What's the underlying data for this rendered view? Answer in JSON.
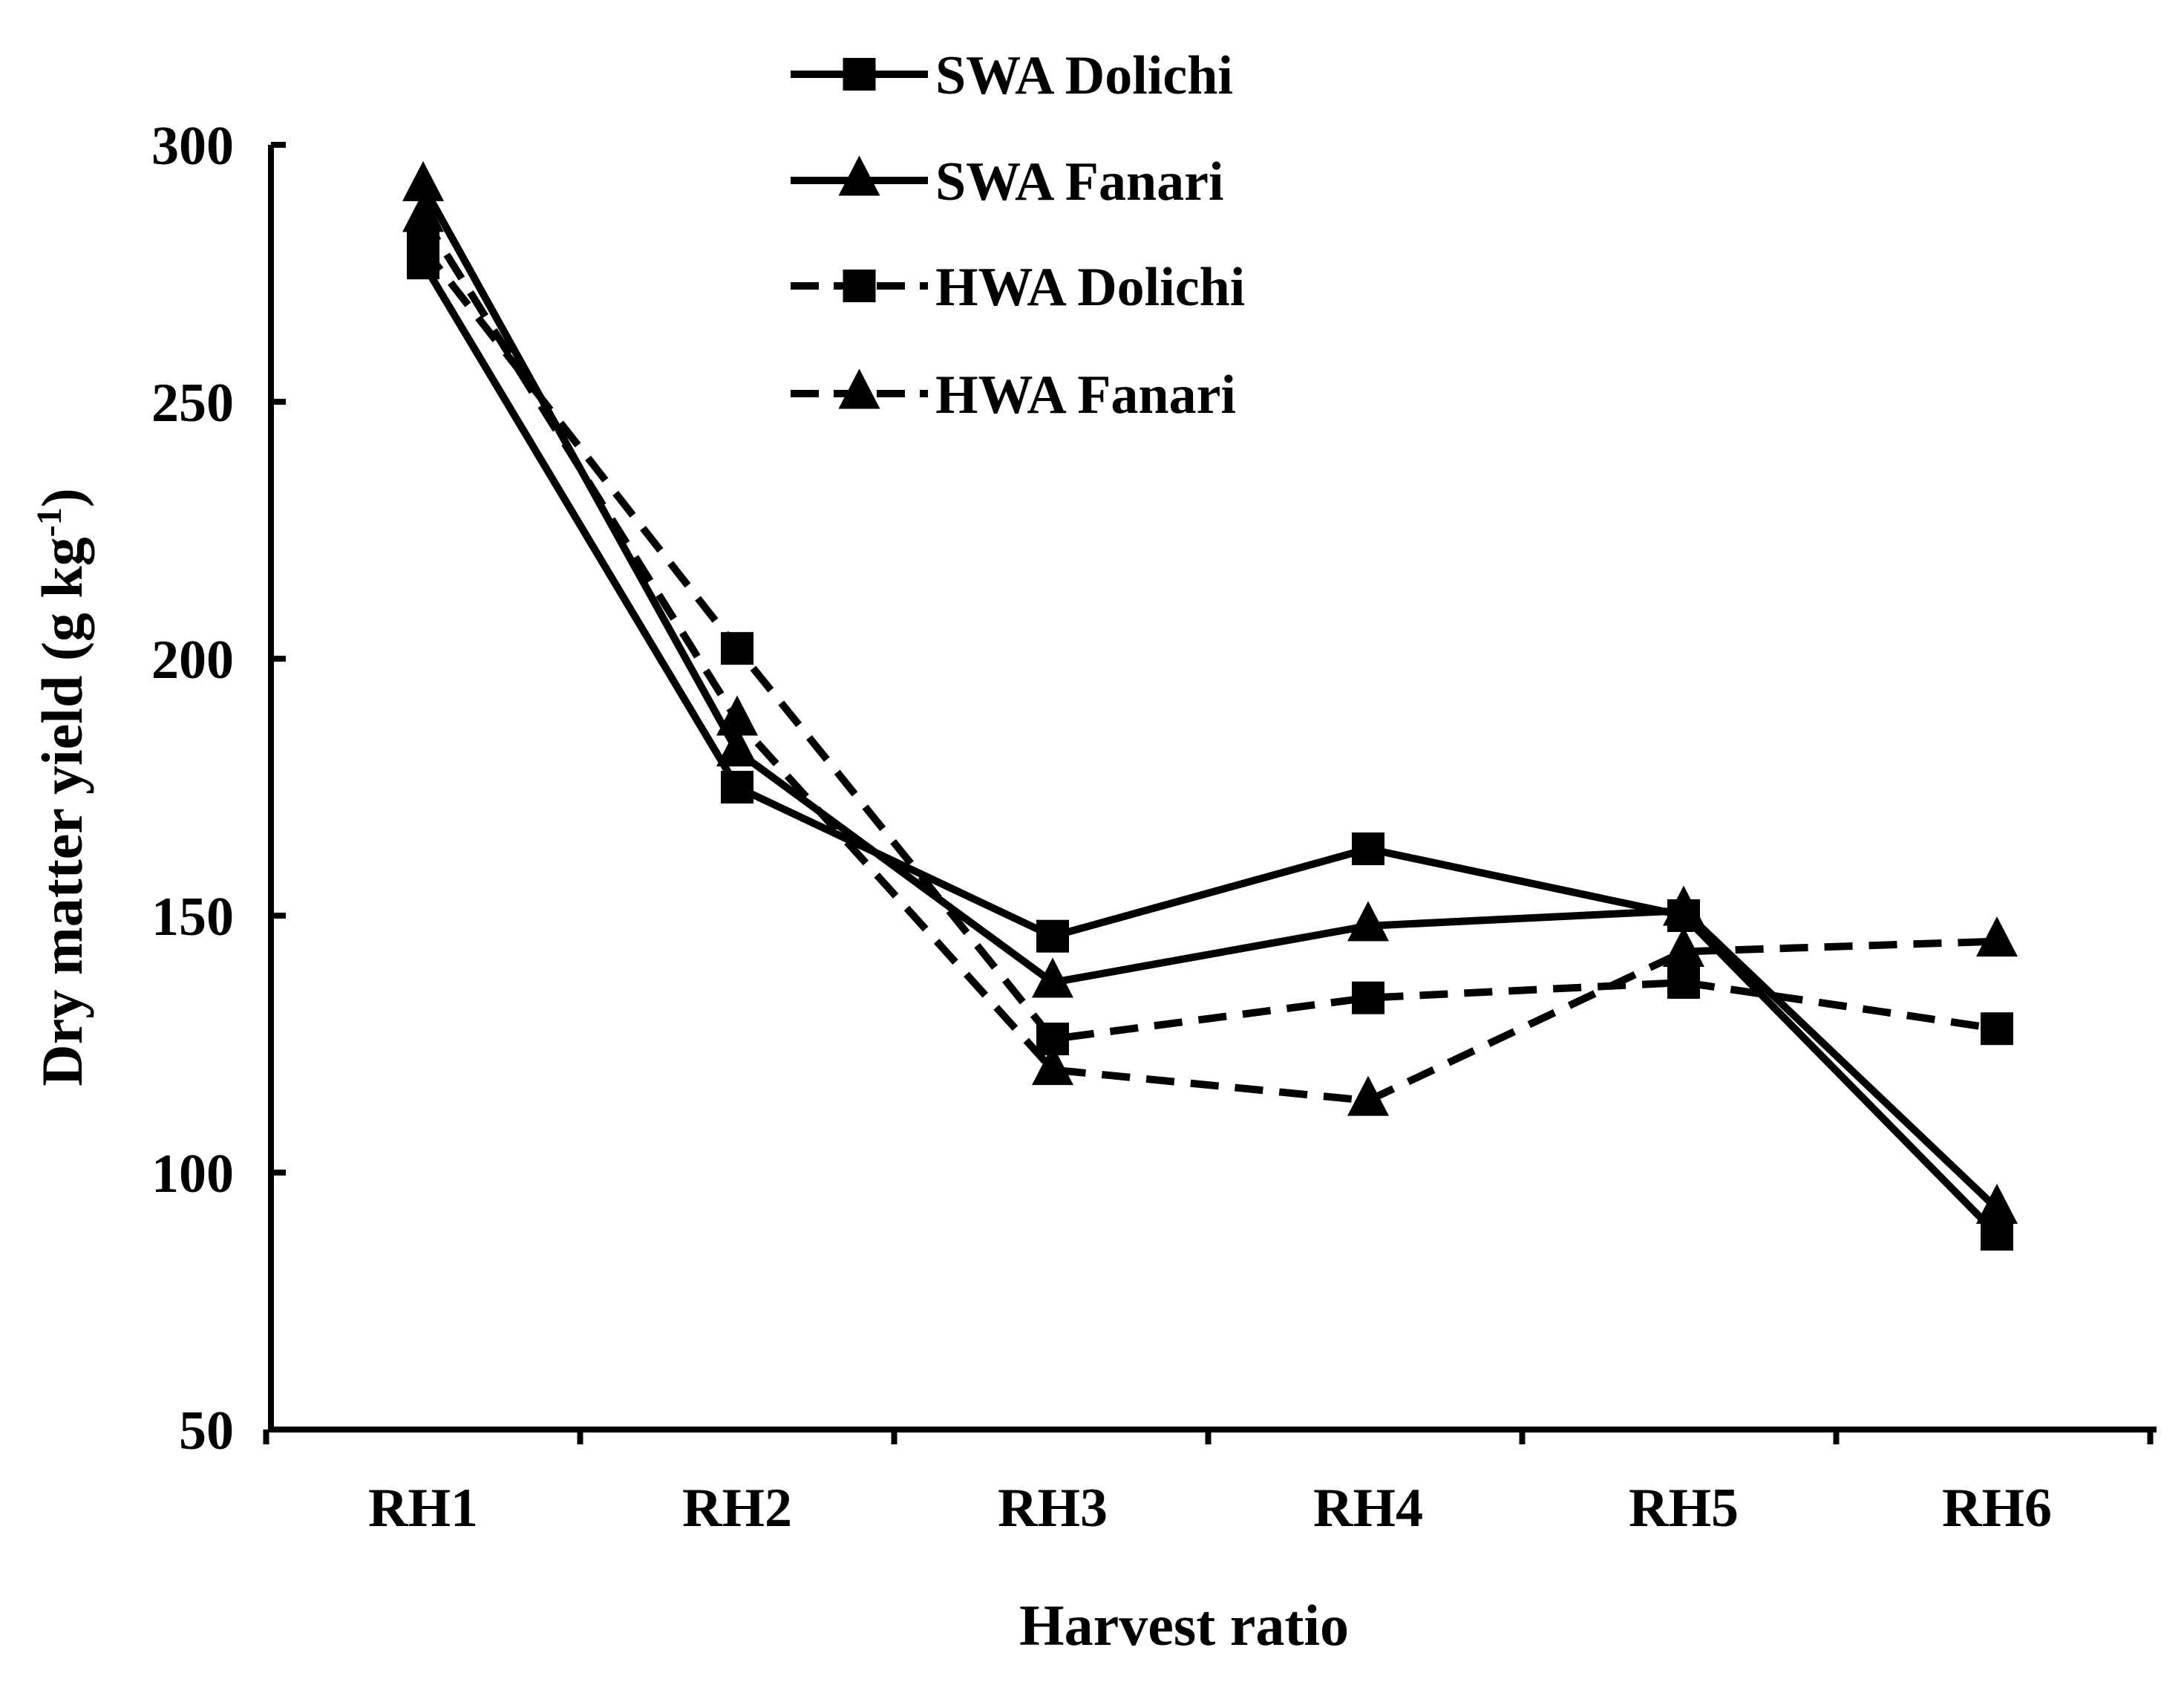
{
  "chart_data": {
    "type": "line",
    "title": "",
    "xlabel": "Harvest ratio",
    "ylabel": {
      "main": "Dry matter yield (g kg",
      "sup": "-1",
      "close": ")"
    },
    "categories": [
      "RH1",
      "RH2",
      "RH3",
      "RH4",
      "RH5",
      "RH6"
    ],
    "ylim": [
      50,
      300
    ],
    "yticks": [
      50,
      100,
      150,
      200,
      250,
      300
    ],
    "grid": false,
    "legend_position": "top-center",
    "series": [
      {
        "name": "SWA Dolichi",
        "line": "solid",
        "marker": "square",
        "values": [
          277,
          175,
          146,
          163,
          150,
          88
        ]
      },
      {
        "name": "SWA Fanari",
        "line": "solid",
        "marker": "triangle",
        "values": [
          292,
          182,
          137,
          148,
          151,
          93
        ]
      },
      {
        "name": "HWA Dolichi",
        "line": "dashed",
        "marker": "square",
        "values": [
          280,
          202,
          126,
          134,
          137,
          128
        ]
      },
      {
        "name": "HWA Fanari",
        "line": "dashed",
        "marker": "triangle",
        "values": [
          286,
          188,
          120,
          114,
          143,
          145
        ]
      }
    ],
    "colors": {
      "lines": "#000000",
      "background": "#ffffff"
    }
  }
}
